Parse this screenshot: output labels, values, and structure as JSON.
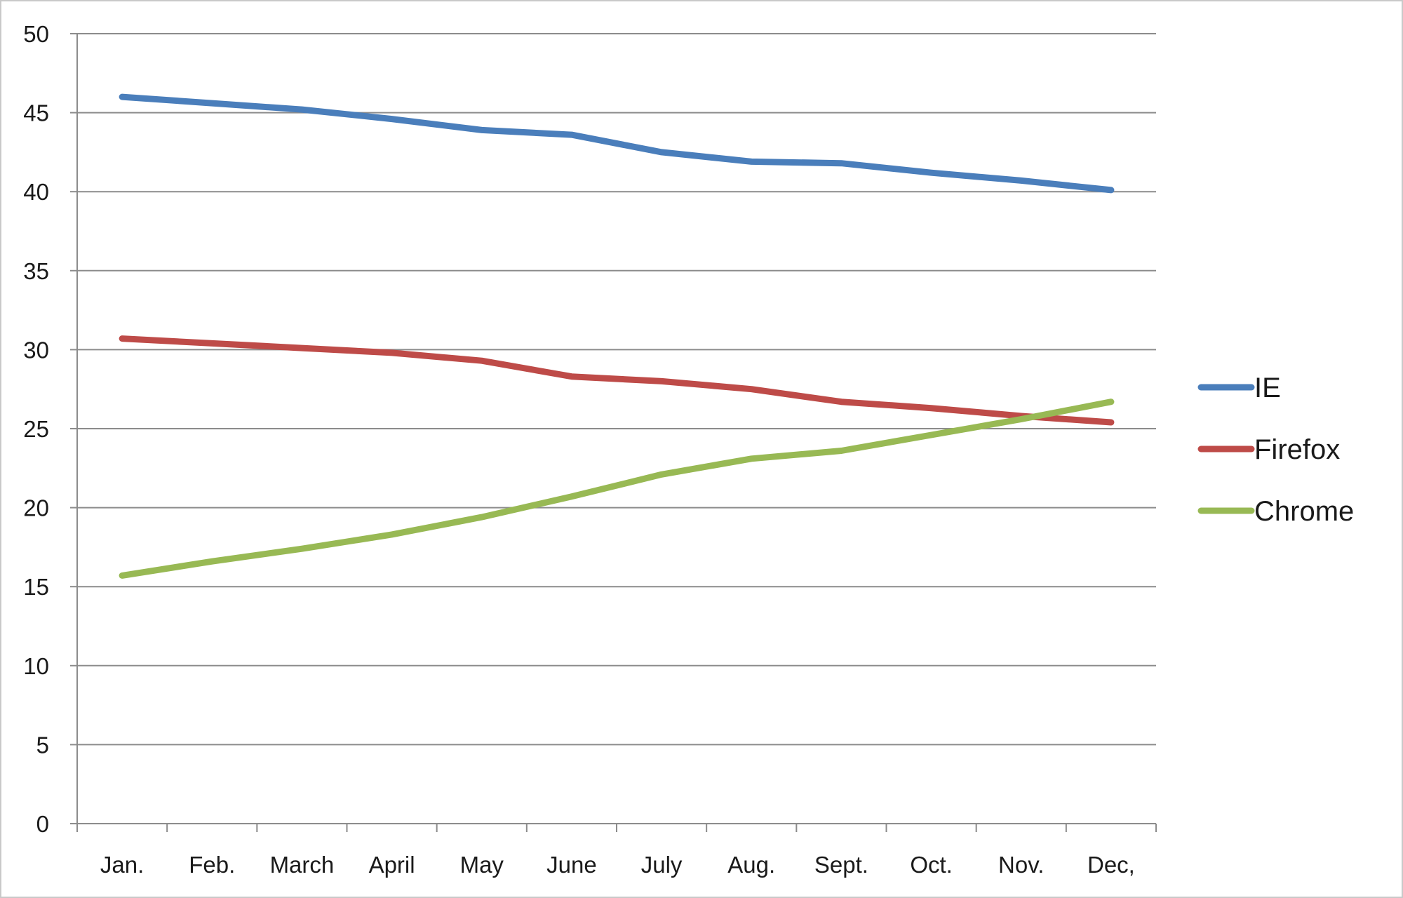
{
  "chart_data": {
    "type": "line",
    "title": "",
    "xlabel": "",
    "ylabel": "",
    "categories": [
      "Jan.",
      "Feb.",
      "March",
      "April",
      "May",
      "June",
      "July",
      "Aug.",
      "Sept.",
      "Oct.",
      "Nov.",
      "Dec,"
    ],
    "series": [
      {
        "name": "IE",
        "color": "#4a7ebb",
        "values": [
          46.0,
          45.6,
          45.2,
          44.6,
          43.9,
          43.6,
          42.5,
          41.9,
          41.8,
          41.2,
          40.7,
          40.1
        ]
      },
      {
        "name": "Firefox",
        "color": "#be4b48",
        "values": [
          30.7,
          30.4,
          30.1,
          29.8,
          29.3,
          28.3,
          28.0,
          27.5,
          26.7,
          26.3,
          25.8,
          25.4
        ]
      },
      {
        "name": "Chrome",
        "color": "#98b954",
        "values": [
          15.7,
          16.6,
          17.4,
          18.3,
          19.4,
          20.7,
          22.1,
          23.1,
          23.6,
          24.6,
          25.6,
          26.7
        ]
      }
    ],
    "ylim": [
      0,
      50
    ],
    "yticks": [
      0,
      5,
      10,
      15,
      20,
      25,
      30,
      35,
      40,
      45,
      50
    ],
    "grid": true,
    "legend_position": "right"
  }
}
